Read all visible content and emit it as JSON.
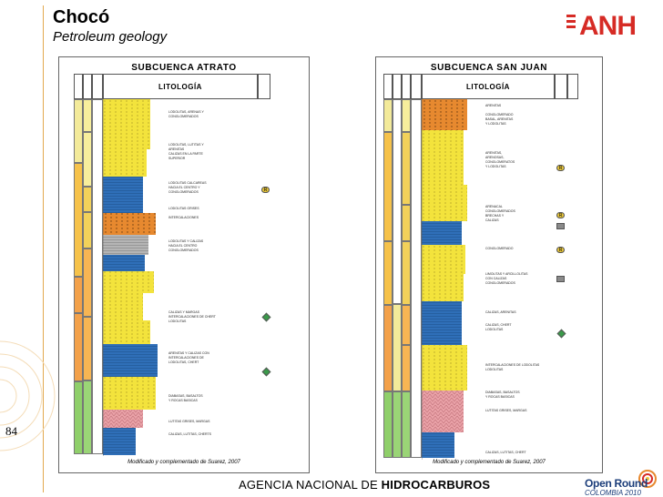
{
  "header": {
    "title": "Chocó",
    "subtitle": "Petroleum geology"
  },
  "logo": {
    "text": "ANH"
  },
  "page_number": "84",
  "footer": {
    "agency_prefix": "AGENCIA NACIONAL DE ",
    "agency_bold": "HIDROCARBUROS"
  },
  "open_round": {
    "title": "Open Round",
    "subtitle": "COLOMBIA 2010"
  },
  "panels": {
    "left": {
      "title": "SUBCUENCA ATRATO",
      "litologia": "LITOLOGÍA",
      "footnote": "Modificado y complementado de Suarez, 2007"
    },
    "right": {
      "title": "SUBCUENCA SAN JUAN",
      "litologia": "LITOLOGÍA",
      "footnote": "Modificado y complementado de Suarez, 2007"
    }
  },
  "colors": {
    "accent": "#e3a94f",
    "anh_red": "#d62b25",
    "navy": "#1b3d7a",
    "yellow": "#f3e33c",
    "orange": "#e7892f",
    "pink": "#e9a1a7",
    "green": "#6fbf5a",
    "blue": "#2f6fb8",
    "grey": "#9a9a9a"
  }
}
